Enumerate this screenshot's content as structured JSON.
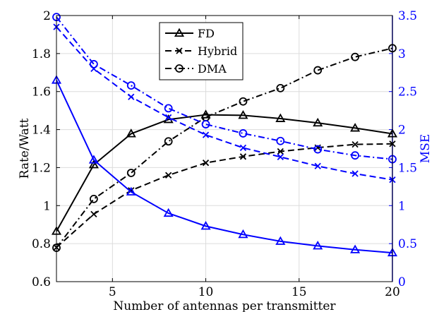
{
  "chart_data": {
    "type": "line",
    "title": "",
    "xlabel": "Number of antennas per transmitter",
    "ylabel_left": "Rate/Watt",
    "ylabel_right": "MSE",
    "xlim": [
      2,
      20
    ],
    "ylim_left": [
      0.6,
      2.0
    ],
    "ylim_right": [
      0,
      3.5
    ],
    "x_ticks": [
      5,
      10,
      15,
      20
    ],
    "y_left_ticks": [
      "0.6",
      "0.8",
      "1",
      "1.2",
      "1.4",
      "1.6",
      "1.8",
      "2"
    ],
    "y_right_ticks": [
      "0",
      "0.5",
      "1",
      "1.5",
      "2",
      "2.5",
      "3",
      "3.5"
    ],
    "grid": true,
    "legend_position": "top-center",
    "colors": {
      "left_axis": "#000000",
      "right_axis": "#0000ff"
    },
    "x": [
      2,
      4,
      6,
      8,
      10,
      12,
      14,
      16,
      18,
      20
    ],
    "series": [
      {
        "name": "FD",
        "axis": "left",
        "color": "#000000",
        "dash": "solid",
        "marker": "triangle",
        "values": [
          0.865,
          1.215,
          1.378,
          1.453,
          1.478,
          1.475,
          1.458,
          1.435,
          1.408,
          1.378
        ]
      },
      {
        "name": "Hybrid",
        "axis": "left",
        "color": "#000000",
        "dash": "dashed",
        "marker": "x",
        "values": [
          0.78,
          0.955,
          1.08,
          1.16,
          1.225,
          1.258,
          1.285,
          1.305,
          1.322,
          1.325
        ]
      },
      {
        "name": "DMA",
        "axis": "left",
        "color": "#000000",
        "dash": "dashdot",
        "marker": "circle",
        "values": [
          0.778,
          1.035,
          1.172,
          1.338,
          1.465,
          1.548,
          1.618,
          1.712,
          1.782,
          1.828
        ]
      },
      {
        "axis": "right",
        "color": "#0000ff",
        "dash": "solid",
        "marker": "triangle",
        "values": [
          2.65,
          1.6,
          1.18,
          0.9,
          0.73,
          0.62,
          0.53,
          0.47,
          0.42,
          0.38
        ]
      },
      {
        "axis": "right",
        "color": "#0000ff",
        "dash": "dashed",
        "marker": "x",
        "values": [
          3.35,
          2.8,
          2.43,
          2.16,
          1.93,
          1.76,
          1.64,
          1.52,
          1.42,
          1.34
        ]
      },
      {
        "axis": "right",
        "color": "#0000ff",
        "dash": "dashdot",
        "marker": "circle",
        "values": [
          3.48,
          2.86,
          2.58,
          2.28,
          2.07,
          1.95,
          1.85,
          1.74,
          1.66,
          1.61
        ]
      }
    ]
  }
}
